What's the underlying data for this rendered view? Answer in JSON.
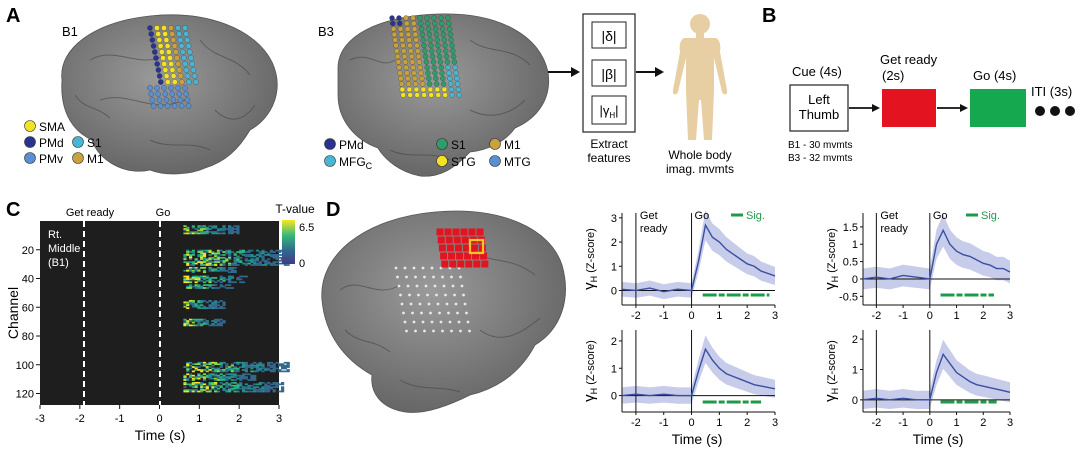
{
  "panel_letters": {
    "A": "A",
    "B": "B",
    "C": "C",
    "D": "D"
  },
  "panel_a": {
    "brain_b1_label": "B1",
    "brain_b3_label": "B3",
    "legend_b1": [
      {
        "label": "SMA",
        "color": "#f2e324"
      },
      {
        "label": "PMd",
        "color": "#28348f"
      },
      {
        "label": "S1",
        "color": "#49b7d3"
      },
      {
        "label": "PMv",
        "color": "#5a8fd0"
      },
      {
        "label": "M1",
        "color": "#c8a23c"
      }
    ],
    "legend_b3": [
      {
        "label": "PMd",
        "color": "#28348f"
      },
      {
        "label": "S1",
        "color": "#2f9c6a"
      },
      {
        "label": "M1",
        "color": "#c8a23c"
      },
      {
        "label": "STG",
        "color": "#f2e324"
      },
      {
        "label": "MTG",
        "color": "#5a8fd0"
      }
    ],
    "legend_b3_mfg": {
      "label": "MFG",
      "subscript": "C",
      "color": "#49b7d3"
    },
    "features": [
      "|δ|",
      "|β|"
    ],
    "feature_gamma": {
      "base": "|γ",
      "subscript": "H",
      "close": "|"
    },
    "extract_label_lines": [
      "Extract",
      "features"
    ],
    "body_label_lines": [
      "Whole body",
      "imag. mvmts"
    ]
  },
  "panel_b": {
    "cue_label": "Cue (4s)",
    "cue_box_lines": [
      "Left",
      "Thumb"
    ],
    "get_ready_lines": [
      "Get ready",
      "(2s)"
    ],
    "go_label": "Go (4s)",
    "iti_label": "ITI (3s)",
    "mvmt_lines": [
      "B1 - 30 mvmts",
      "B3 - 32 mvmts"
    ],
    "colors": {
      "get_ready": "#e3141f",
      "go": "#16a84e"
    }
  },
  "panel_c": {
    "annotations": {
      "get_ready": "Get ready",
      "go": "Go"
    },
    "inset_lines": [
      "Rt.",
      "Middle",
      "(B1)"
    ],
    "colorbar_title": "T-value",
    "colorbar_ticks": [
      "6.5",
      "0"
    ],
    "x_ticks": [
      "-3",
      "-2",
      "-1",
      "0",
      "1",
      "2",
      "3"
    ],
    "y_ticks": [
      "20",
      "40",
      "60",
      "80",
      "100",
      "120"
    ],
    "xlabel": "Time (s)",
    "ylabel": "Channel"
  },
  "panel_d": {
    "xlabel": "Time (s)",
    "x_ticks": [
      "-2",
      "-1",
      "0",
      "1",
      "2",
      "3"
    ],
    "ylabel_main": "γ",
    "ylabel_sub": "H",
    "ylabel_units": "(Z-score)",
    "get_ready_lines": [
      "Get",
      "ready"
    ],
    "go_label": "Go",
    "sig_label": "Sig.",
    "colors": {
      "mean": "#3b4fa0",
      "band": "#b9bfe6",
      "sig": "#1f9a4a",
      "electrode": "#e3141f",
      "highlight": "#f2c81f"
    }
  },
  "chart_data": [
    {
      "type": "line",
      "panel": "D-left-top",
      "x": [
        -2.5,
        -2.0,
        -1.5,
        -1.0,
        -0.5,
        0.0,
        0.25,
        0.5,
        0.75,
        1.0,
        1.25,
        1.5,
        1.75,
        2.0,
        2.25,
        2.5,
        2.75,
        3.0
      ],
      "y": [
        0.05,
        0.0,
        0.1,
        -0.05,
        0.05,
        0.0,
        1.2,
        2.7,
        2.2,
        2.0,
        1.7,
        1.5,
        1.3,
        1.1,
        1.0,
        0.8,
        0.7,
        0.6
      ],
      "ylim": [
        -0.6,
        3.2
      ],
      "xlim": [
        -2.5,
        3.0
      ],
      "y_ticks": [
        "0",
        "1",
        "2",
        "3"
      ],
      "sig_ranges": [
        [
          0.4,
          2.8
        ]
      ]
    },
    {
      "type": "line",
      "panel": "D-left-bottom",
      "x": [
        -2.5,
        -2.0,
        -1.5,
        -1.0,
        -0.5,
        0.0,
        0.25,
        0.5,
        0.75,
        1.0,
        1.25,
        1.5,
        1.75,
        2.0,
        2.25,
        2.5,
        2.75,
        3.0
      ],
      "y": [
        0.0,
        0.05,
        0.0,
        0.05,
        0.0,
        0.0,
        0.9,
        1.7,
        1.3,
        1.0,
        0.8,
        0.7,
        0.6,
        0.5,
        0.4,
        0.35,
        0.3,
        0.25
      ],
      "ylim": [
        -0.6,
        2.4
      ],
      "xlim": [
        -2.5,
        3.0
      ],
      "y_ticks": [
        "0",
        "1",
        "2"
      ],
      "sig_ranges": [
        [
          0.4,
          2.5
        ]
      ]
    },
    {
      "type": "line",
      "panel": "D-right-top",
      "x": [
        -2.5,
        -2.0,
        -1.5,
        -1.0,
        -0.5,
        0.0,
        0.25,
        0.5,
        0.75,
        1.0,
        1.25,
        1.5,
        1.75,
        2.0,
        2.25,
        2.5,
        2.75,
        3.0
      ],
      "y": [
        0.0,
        0.05,
        0.0,
        0.1,
        0.05,
        0.0,
        1.0,
        1.4,
        1.0,
        0.8,
        0.7,
        0.65,
        0.55,
        0.45,
        0.4,
        0.3,
        0.3,
        0.2
      ],
      "ylim": [
        -0.75,
        1.9
      ],
      "xlim": [
        -2.5,
        3.0
      ],
      "y_ticks": [
        "1.5",
        "1",
        "0.5",
        "0",
        "-0.5"
      ],
      "sig_ranges": [
        [
          0.4,
          2.4
        ]
      ]
    },
    {
      "type": "line",
      "panel": "D-right-bottom",
      "x": [
        -2.5,
        -2.0,
        -1.5,
        -1.0,
        -0.5,
        0.0,
        0.25,
        0.5,
        0.75,
        1.0,
        1.25,
        1.5,
        1.75,
        2.0,
        2.25,
        2.5,
        2.75,
        3.0
      ],
      "y": [
        0.0,
        0.05,
        0.0,
        0.05,
        0.0,
        0.0,
        0.9,
        1.5,
        1.2,
        0.9,
        0.75,
        0.6,
        0.5,
        0.45,
        0.4,
        0.35,
        0.3,
        0.25
      ],
      "ylim": [
        -0.4,
        2.3
      ],
      "xlim": [
        -2.5,
        3.0
      ],
      "y_ticks": [
        "0",
        "1",
        "2"
      ],
      "sig_ranges": [
        [
          0.4,
          2.5
        ]
      ]
    }
  ]
}
